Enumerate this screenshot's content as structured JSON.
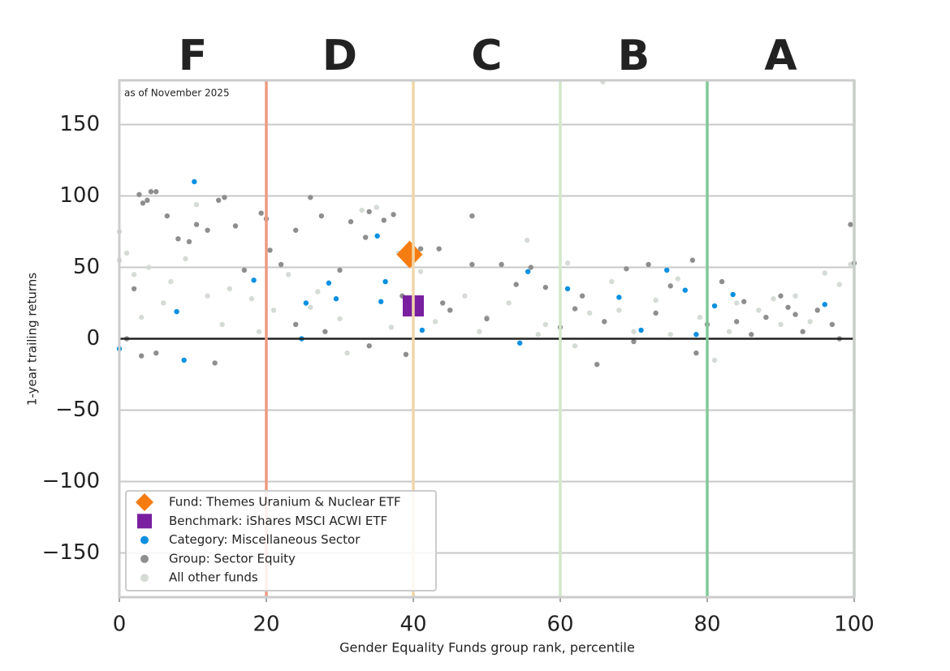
{
  "chart_data": {
    "type": "scatter",
    "note": "as of November 2025",
    "xlabel": "Gender Equality Funds group rank, percentile",
    "ylabel": "1-year trailing returns",
    "xlim": [
      0,
      100
    ],
    "ylim": [
      -181,
      181
    ],
    "xticks": [
      0,
      20,
      40,
      60,
      80,
      100
    ],
    "yticks": [
      {
        "value": -150,
        "label": "−150"
      },
      {
        "value": -100,
        "label": "−100"
      },
      {
        "value": -50,
        "label": "−50"
      },
      0,
      50,
      100,
      150
    ],
    "grid": true,
    "reference_line": 0,
    "legend": "lower left",
    "bands": [
      {
        "label": "F",
        "start": 0,
        "end": 20,
        "color": "#c8102e",
        "line_color": "#ee9a82"
      },
      {
        "label": "D",
        "start": 20,
        "end": 40,
        "color": "#dc4a10",
        "line_color": "#f0d6a8"
      },
      {
        "label": "C",
        "start": 40,
        "end": 60,
        "color": "#dcb050",
        "line_color": "#d2e8c8"
      },
      {
        "label": "B",
        "start": 60,
        "end": 80,
        "color": "#a8d898",
        "line_color": "#80c898"
      },
      {
        "label": "A",
        "start": 80,
        "end": 100,
        "color": "#159a45",
        "line_color": "#a8d8b4"
      }
    ],
    "series": [
      {
        "name": "All other funds",
        "color": "#d5dbd5",
        "marker": "circle",
        "x": [
          0,
          0,
          1,
          2,
          4,
          7,
          9,
          10.5,
          12,
          15,
          18,
          21,
          23,
          27,
          31,
          33,
          35,
          38,
          41,
          45,
          47,
          50,
          53,
          55.5,
          58,
          61,
          64,
          65.8,
          67,
          70,
          73,
          76,
          79,
          81,
          84,
          87,
          90,
          92,
          96,
          98,
          99.5,
          3,
          6,
          14,
          19,
          26,
          30,
          37,
          43,
          49,
          57,
          62,
          68,
          75,
          83,
          89,
          94
        ],
        "y": [
          75,
          55,
          60,
          45,
          50,
          40,
          56,
          94,
          30,
          35,
          28,
          20,
          45,
          33,
          -10,
          90,
          92,
          60,
          47,
          20,
          30,
          15,
          25,
          69,
          10,
          53,
          18,
          180,
          40,
          5,
          27,
          42,
          15,
          -15,
          25,
          20,
          10,
          30,
          46,
          38,
          52,
          15,
          25,
          10,
          5,
          22,
          14,
          8,
          12,
          5,
          3,
          -5,
          20,
          3,
          5,
          28,
          12
        ]
      },
      {
        "name": "Group: Sector Equity",
        "color": "#8e8e8e",
        "marker": "circle",
        "x": [
          1,
          2,
          2.7,
          3.2,
          3.8,
          4.3,
          5,
          6.5,
          8,
          9.5,
          10.5,
          12,
          13.5,
          14.3,
          15.8,
          17,
          19.3,
          20,
          20.5,
          22,
          24,
          26,
          27.5,
          30,
          31.5,
          33.5,
          34,
          36,
          37.3,
          38.5,
          39.8,
          41,
          43.5,
          48,
          48,
          52,
          56,
          58,
          62,
          65,
          69,
          72,
          75,
          78,
          78.5,
          82,
          85,
          88,
          90,
          92,
          95,
          98,
          99.5,
          100,
          3,
          5,
          13,
          24,
          45,
          50,
          60,
          66,
          70,
          80,
          86,
          93,
          28,
          34,
          39,
          44,
          54,
          63,
          73,
          84,
          91,
          97
        ],
        "y": [
          0,
          35,
          101,
          95,
          97,
          103,
          103,
          86,
          70,
          68,
          80,
          76,
          97,
          99,
          79,
          48,
          88,
          84,
          62,
          52,
          76,
          99,
          86,
          48,
          82,
          71,
          89,
          83,
          87,
          30,
          54,
          63,
          63,
          86,
          52,
          52,
          50,
          36,
          21,
          -18,
          49,
          52,
          37,
          55,
          -10,
          40,
          26,
          15,
          30,
          17,
          20,
          0,
          80,
          53,
          -12,
          -10,
          -17,
          10,
          20,
          14,
          8,
          12,
          -2,
          10,
          3,
          5,
          5,
          -5,
          -11,
          25,
          38,
          30,
          18,
          12,
          22,
          10
        ]
      },
      {
        "name": "Category: Miscellaneous Sector",
        "color": "#0a90e0",
        "marker": "circle",
        "x": [
          0,
          7.8,
          8.8,
          10.2,
          18.3,
          25.4,
          24.8,
          29.5,
          28.5,
          35.1,
          35.6,
          36.2,
          41.2,
          54.5,
          55.6,
          61,
          68,
          71,
          74.5,
          77,
          78.5,
          81,
          83.5,
          96
        ],
        "y": [
          -7,
          19,
          -15,
          110,
          41,
          25,
          0,
          28,
          39,
          72,
          26,
          40,
          6,
          -3,
          47,
          35,
          29,
          6,
          48,
          34,
          3,
          23,
          31,
          24
        ]
      },
      {
        "name": "Benchmark: iShares MSCI ACWI ETF",
        "color": "#7a1fa0",
        "marker": "square",
        "x": [
          40
        ],
        "y": [
          23
        ]
      },
      {
        "name": "Fund: Themes Uranium & Nuclear ETF",
        "color": "#f57c10",
        "marker": "diamond",
        "x": [
          39.5
        ],
        "y": [
          59
        ]
      }
    ]
  }
}
